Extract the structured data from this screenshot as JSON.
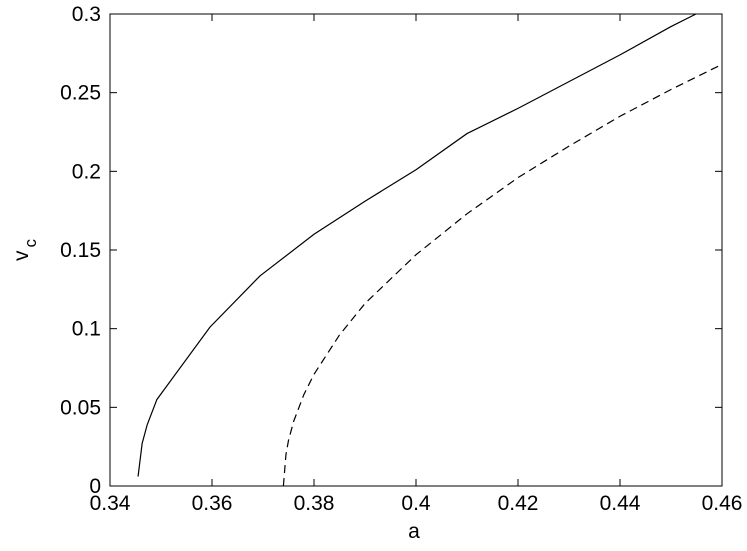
{
  "chart_data": {
    "type": "line",
    "xlabel": "a",
    "ylabel": "v",
    "ylabel_subscript": "c",
    "xlim": [
      0.34,
      0.46
    ],
    "ylim": [
      0,
      0.3
    ],
    "xticks": [
      0.34,
      0.36,
      0.38,
      0.4,
      0.42,
      0.44,
      0.46
    ],
    "yticks": [
      0,
      0.05,
      0.1,
      0.15,
      0.2,
      0.25,
      0.3
    ],
    "grid": false,
    "series": [
      {
        "color": "#000000",
        "dashed": false,
        "x": [
          0.3455,
          0.3463,
          0.3473,
          0.3492,
          0.3596,
          0.3694,
          0.38,
          0.39,
          0.4,
          0.41,
          0.42,
          0.43,
          0.44,
          0.45,
          0.4549
        ],
        "values": [
          0.006,
          0.027,
          0.039,
          0.055,
          0.101,
          0.1335,
          0.16,
          0.181,
          0.201,
          0.224,
          0.24,
          0.257,
          0.274,
          0.292,
          0.3
        ]
      },
      {
        "color": "#000000",
        "dashed": true,
        "x": [
          0.374,
          0.3745,
          0.375,
          0.376,
          0.378,
          0.38,
          0.385,
          0.39,
          0.4,
          0.41,
          0.42,
          0.43,
          0.44,
          0.45,
          0.46
        ],
        "values": [
          0,
          0.02,
          0.029,
          0.041,
          0.058,
          0.071,
          0.096,
          0.116,
          0.147,
          0.173,
          0.196,
          0.216,
          0.235,
          0.252,
          0.268
        ]
      }
    ]
  }
}
